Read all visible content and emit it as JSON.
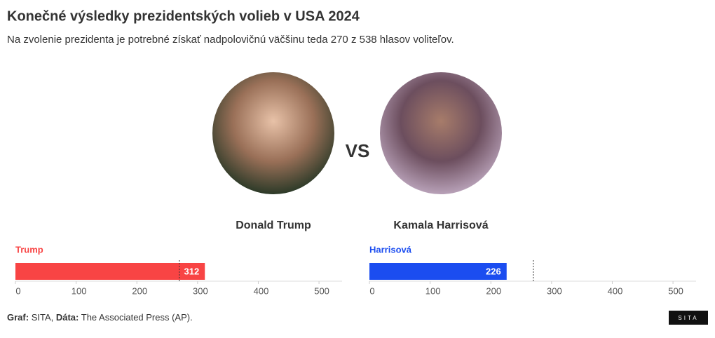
{
  "title": "Konečné výsledky prezidentských volieb v USA 2024",
  "subtitle": "Na zvolenie prezidenta je potrebné získať nadpolovičnú väčšinu teda 270 z 538 hlasov voliteľov.",
  "candidates": [
    "Donald Trump",
    "Kamala Harrisová"
  ],
  "versus": "VS",
  "chart_data": [
    {
      "type": "bar",
      "orientation": "horizontal",
      "series": [
        {
          "name": "Trump",
          "color": "#f84444",
          "values": [
            312
          ]
        }
      ],
      "xlim": [
        0,
        538
      ],
      "xticks": [
        0,
        100,
        200,
        300,
        400,
        500
      ],
      "threshold": 270
    },
    {
      "type": "bar",
      "orientation": "horizontal",
      "series": [
        {
          "name": "Harrisová",
          "color": "#1b4df0",
          "values": [
            226
          ]
        }
      ],
      "xlim": [
        0,
        538
      ],
      "xticks": [
        0,
        100,
        200,
        300,
        400,
        500
      ],
      "threshold": 270
    }
  ],
  "footer": {
    "graph_label": "Graf:",
    "graph": "SITA,",
    "data_label": "Dáta:",
    "data": "The Associated Press (AP)."
  },
  "logo": "SITA"
}
